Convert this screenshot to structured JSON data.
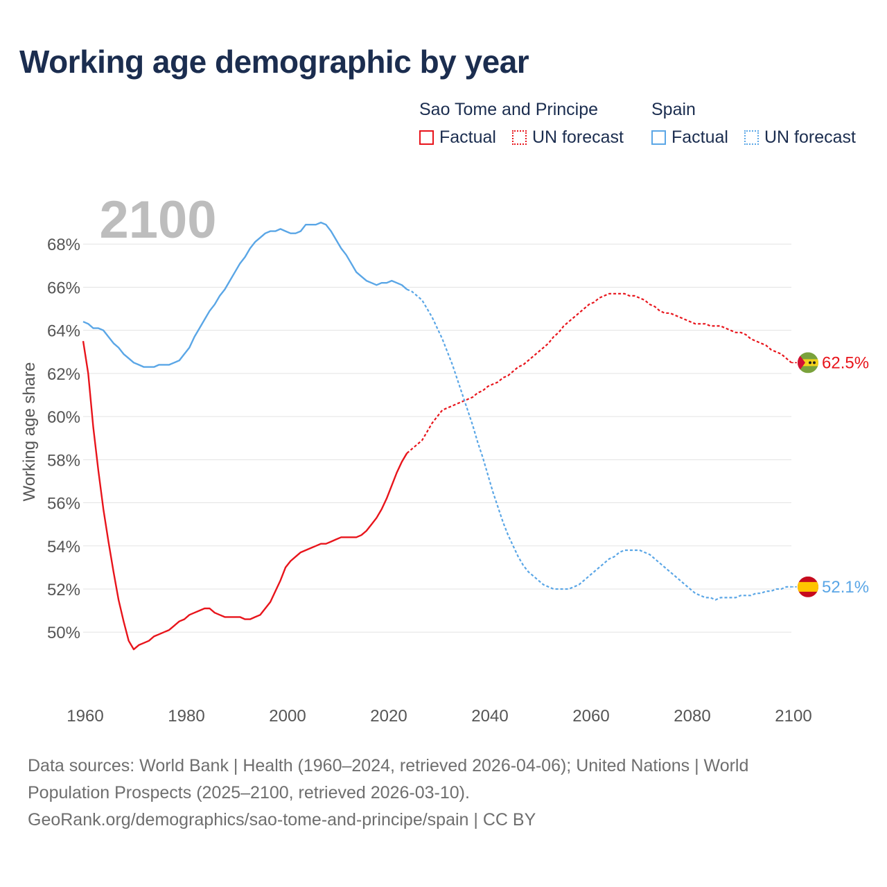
{
  "header": {
    "title": "Working age demographic by year"
  },
  "legend": {
    "groups": [
      {
        "name": "Sao Tome and Principe",
        "color": "#e8141b",
        "items": [
          {
            "label": "Factual",
            "style": "solid"
          },
          {
            "label": "UN forecast",
            "style": "dotted"
          }
        ]
      },
      {
        "name": "Spain",
        "color": "#5aa6e6",
        "items": [
          {
            "label": "Factual",
            "style": "solid"
          },
          {
            "label": "UN forecast",
            "style": "dotted"
          }
        ]
      }
    ]
  },
  "chart_data": {
    "type": "line",
    "title": "Working age demographic by year",
    "ylabel": "Working age share",
    "xlabel": "",
    "year_watermark": "2100",
    "xlim": [
      1960,
      2100
    ],
    "ylim": [
      47.5,
      70.0
    ],
    "x_ticks": [
      "1960",
      "1980",
      "2000",
      "2020",
      "2040",
      "2060",
      "2080",
      "2100"
    ],
    "y_ticks": [
      "50%",
      "52%",
      "54%",
      "56%",
      "58%",
      "60%",
      "62%",
      "64%",
      "66%",
      "68%"
    ],
    "grid": true,
    "factual_end_year": 2024,
    "series": [
      {
        "name": "Sao Tome and Principe",
        "color": "#e8141b",
        "end_label": "62.5%",
        "points": [
          [
            1960,
            63.5
          ],
          [
            1961,
            62.0
          ],
          [
            1962,
            59.5
          ],
          [
            1963,
            57.5
          ],
          [
            1964,
            55.7
          ],
          [
            1965,
            54.2
          ],
          [
            1966,
            52.8
          ],
          [
            1967,
            51.5
          ],
          [
            1968,
            50.5
          ],
          [
            1969,
            49.6
          ],
          [
            1970,
            49.2
          ],
          [
            1971,
            49.4
          ],
          [
            1972,
            49.5
          ],
          [
            1973,
            49.6
          ],
          [
            1974,
            49.8
          ],
          [
            1975,
            49.9
          ],
          [
            1976,
            50.0
          ],
          [
            1977,
            50.1
          ],
          [
            1978,
            50.3
          ],
          [
            1979,
            50.5
          ],
          [
            1980,
            50.6
          ],
          [
            1981,
            50.8
          ],
          [
            1982,
            50.9
          ],
          [
            1983,
            51.0
          ],
          [
            1984,
            51.1
          ],
          [
            1985,
            51.1
          ],
          [
            1986,
            50.9
          ],
          [
            1987,
            50.8
          ],
          [
            1988,
            50.7
          ],
          [
            1989,
            50.7
          ],
          [
            1990,
            50.7
          ],
          [
            1991,
            50.7
          ],
          [
            1992,
            50.6
          ],
          [
            1993,
            50.6
          ],
          [
            1994,
            50.7
          ],
          [
            1995,
            50.8
          ],
          [
            1996,
            51.1
          ],
          [
            1997,
            51.4
          ],
          [
            1998,
            51.9
          ],
          [
            1999,
            52.4
          ],
          [
            2000,
            53.0
          ],
          [
            2001,
            53.3
          ],
          [
            2002,
            53.5
          ],
          [
            2003,
            53.7
          ],
          [
            2004,
            53.8
          ],
          [
            2005,
            53.9
          ],
          [
            2006,
            54.0
          ],
          [
            2007,
            54.1
          ],
          [
            2008,
            54.1
          ],
          [
            2009,
            54.2
          ],
          [
            2010,
            54.3
          ],
          [
            2011,
            54.4
          ],
          [
            2012,
            54.4
          ],
          [
            2013,
            54.4
          ],
          [
            2014,
            54.4
          ],
          [
            2015,
            54.5
          ],
          [
            2016,
            54.7
          ],
          [
            2017,
            55.0
          ],
          [
            2018,
            55.3
          ],
          [
            2019,
            55.7
          ],
          [
            2020,
            56.2
          ],
          [
            2021,
            56.8
          ],
          [
            2022,
            57.4
          ],
          [
            2023,
            57.9
          ],
          [
            2024,
            58.3
          ],
          [
            2025,
            58.5
          ],
          [
            2026,
            58.7
          ],
          [
            2027,
            58.9
          ],
          [
            2028,
            59.3
          ],
          [
            2029,
            59.7
          ],
          [
            2030,
            60.0
          ],
          [
            2031,
            60.3
          ],
          [
            2032,
            60.4
          ],
          [
            2033,
            60.5
          ],
          [
            2034,
            60.6
          ],
          [
            2035,
            60.7
          ],
          [
            2036,
            60.8
          ],
          [
            2037,
            60.9
          ],
          [
            2038,
            61.1
          ],
          [
            2039,
            61.2
          ],
          [
            2040,
            61.4
          ],
          [
            2041,
            61.5
          ],
          [
            2042,
            61.6
          ],
          [
            2043,
            61.8
          ],
          [
            2044,
            61.9
          ],
          [
            2045,
            62.1
          ],
          [
            2046,
            62.3
          ],
          [
            2047,
            62.4
          ],
          [
            2048,
            62.6
          ],
          [
            2049,
            62.8
          ],
          [
            2050,
            63.0
          ],
          [
            2051,
            63.2
          ],
          [
            2052,
            63.4
          ],
          [
            2053,
            63.7
          ],
          [
            2054,
            63.9
          ],
          [
            2055,
            64.2
          ],
          [
            2056,
            64.4
          ],
          [
            2057,
            64.6
          ],
          [
            2058,
            64.8
          ],
          [
            2059,
            65.0
          ],
          [
            2060,
            65.2
          ],
          [
            2061,
            65.3
          ],
          [
            2062,
            65.5
          ],
          [
            2063,
            65.6
          ],
          [
            2064,
            65.7
          ],
          [
            2065,
            65.7
          ],
          [
            2066,
            65.7
          ],
          [
            2067,
            65.7
          ],
          [
            2068,
            65.6
          ],
          [
            2069,
            65.6
          ],
          [
            2070,
            65.5
          ],
          [
            2071,
            65.4
          ],
          [
            2072,
            65.2
          ],
          [
            2073,
            65.1
          ],
          [
            2074,
            64.9
          ],
          [
            2075,
            64.8
          ],
          [
            2076,
            64.8
          ],
          [
            2077,
            64.7
          ],
          [
            2078,
            64.6
          ],
          [
            2079,
            64.5
          ],
          [
            2080,
            64.4
          ],
          [
            2081,
            64.3
          ],
          [
            2082,
            64.3
          ],
          [
            2083,
            64.3
          ],
          [
            2084,
            64.2
          ],
          [
            2085,
            64.2
          ],
          [
            2086,
            64.2
          ],
          [
            2087,
            64.1
          ],
          [
            2088,
            64.0
          ],
          [
            2089,
            63.9
          ],
          [
            2090,
            63.9
          ],
          [
            2091,
            63.8
          ],
          [
            2092,
            63.6
          ],
          [
            2093,
            63.5
          ],
          [
            2094,
            63.4
          ],
          [
            2095,
            63.3
          ],
          [
            2096,
            63.1
          ],
          [
            2097,
            63.0
          ],
          [
            2098,
            62.9
          ],
          [
            2099,
            62.7
          ],
          [
            2100,
            62.5
          ]
        ]
      },
      {
        "name": "Spain",
        "color": "#5aa6e6",
        "end_label": "52.1%",
        "points": [
          [
            1960,
            64.4
          ],
          [
            1961,
            64.3
          ],
          [
            1962,
            64.1
          ],
          [
            1963,
            64.1
          ],
          [
            1964,
            64.0
          ],
          [
            1965,
            63.7
          ],
          [
            1966,
            63.4
          ],
          [
            1967,
            63.2
          ],
          [
            1968,
            62.9
          ],
          [
            1969,
            62.7
          ],
          [
            1970,
            62.5
          ],
          [
            1971,
            62.4
          ],
          [
            1972,
            62.3
          ],
          [
            1973,
            62.3
          ],
          [
            1974,
            62.3
          ],
          [
            1975,
            62.4
          ],
          [
            1976,
            62.4
          ],
          [
            1977,
            62.4
          ],
          [
            1978,
            62.5
          ],
          [
            1979,
            62.6
          ],
          [
            1980,
            62.9
          ],
          [
            1981,
            63.2
          ],
          [
            1982,
            63.7
          ],
          [
            1983,
            64.1
          ],
          [
            1984,
            64.5
          ],
          [
            1985,
            64.9
          ],
          [
            1986,
            65.2
          ],
          [
            1987,
            65.6
          ],
          [
            1988,
            65.9
          ],
          [
            1989,
            66.3
          ],
          [
            1990,
            66.7
          ],
          [
            1991,
            67.1
          ],
          [
            1992,
            67.4
          ],
          [
            1993,
            67.8
          ],
          [
            1994,
            68.1
          ],
          [
            1995,
            68.3
          ],
          [
            1996,
            68.5
          ],
          [
            1997,
            68.6
          ],
          [
            1998,
            68.6
          ],
          [
            1999,
            68.7
          ],
          [
            2000,
            68.6
          ],
          [
            2001,
            68.5
          ],
          [
            2002,
            68.5
          ],
          [
            2003,
            68.6
          ],
          [
            2004,
            68.9
          ],
          [
            2005,
            68.9
          ],
          [
            2006,
            68.9
          ],
          [
            2007,
            69.0
          ],
          [
            2008,
            68.9
          ],
          [
            2009,
            68.6
          ],
          [
            2010,
            68.2
          ],
          [
            2011,
            67.8
          ],
          [
            2012,
            67.5
          ],
          [
            2013,
            67.1
          ],
          [
            2014,
            66.7
          ],
          [
            2015,
            66.5
          ],
          [
            2016,
            66.3
          ],
          [
            2017,
            66.2
          ],
          [
            2018,
            66.1
          ],
          [
            2019,
            66.2
          ],
          [
            2020,
            66.2
          ],
          [
            2021,
            66.3
          ],
          [
            2022,
            66.2
          ],
          [
            2023,
            66.1
          ],
          [
            2024,
            65.9
          ],
          [
            2025,
            65.8
          ],
          [
            2026,
            65.6
          ],
          [
            2027,
            65.4
          ],
          [
            2028,
            65.0
          ],
          [
            2029,
            64.6
          ],
          [
            2030,
            64.1
          ],
          [
            2031,
            63.6
          ],
          [
            2032,
            63.0
          ],
          [
            2033,
            62.4
          ],
          [
            2034,
            61.7
          ],
          [
            2035,
            61.0
          ],
          [
            2036,
            60.3
          ],
          [
            2037,
            59.6
          ],
          [
            2038,
            58.8
          ],
          [
            2039,
            58.1
          ],
          [
            2040,
            57.3
          ],
          [
            2041,
            56.5
          ],
          [
            2042,
            55.8
          ],
          [
            2043,
            55.1
          ],
          [
            2044,
            54.5
          ],
          [
            2045,
            54.0
          ],
          [
            2046,
            53.5
          ],
          [
            2047,
            53.1
          ],
          [
            2048,
            52.8
          ],
          [
            2049,
            52.6
          ],
          [
            2050,
            52.4
          ],
          [
            2051,
            52.2
          ],
          [
            2052,
            52.1
          ],
          [
            2053,
            52.0
          ],
          [
            2054,
            52.0
          ],
          [
            2055,
            52.0
          ],
          [
            2056,
            52.0
          ],
          [
            2057,
            52.1
          ],
          [
            2058,
            52.2
          ],
          [
            2059,
            52.4
          ],
          [
            2060,
            52.6
          ],
          [
            2061,
            52.8
          ],
          [
            2062,
            53.0
          ],
          [
            2063,
            53.2
          ],
          [
            2064,
            53.4
          ],
          [
            2065,
            53.5
          ],
          [
            2066,
            53.7
          ],
          [
            2067,
            53.8
          ],
          [
            2068,
            53.8
          ],
          [
            2069,
            53.8
          ],
          [
            2070,
            53.8
          ],
          [
            2071,
            53.7
          ],
          [
            2072,
            53.6
          ],
          [
            2073,
            53.4
          ],
          [
            2074,
            53.2
          ],
          [
            2075,
            53.0
          ],
          [
            2076,
            52.8
          ],
          [
            2077,
            52.6
          ],
          [
            2078,
            52.4
          ],
          [
            2079,
            52.2
          ],
          [
            2080,
            52.0
          ],
          [
            2081,
            51.8
          ],
          [
            2082,
            51.7
          ],
          [
            2083,
            51.6
          ],
          [
            2084,
            51.6
          ],
          [
            2085,
            51.5
          ],
          [
            2086,
            51.6
          ],
          [
            2087,
            51.6
          ],
          [
            2088,
            51.6
          ],
          [
            2089,
            51.6
          ],
          [
            2090,
            51.7
          ],
          [
            2091,
            51.7
          ],
          [
            2092,
            51.7
          ],
          [
            2093,
            51.8
          ],
          [
            2094,
            51.8
          ],
          [
            2095,
            51.9
          ],
          [
            2096,
            51.9
          ],
          [
            2097,
            52.0
          ],
          [
            2098,
            52.0
          ],
          [
            2099,
            52.1
          ],
          [
            2100,
            52.1
          ]
        ]
      }
    ]
  },
  "flags": {
    "sao_tome": {
      "green": "#7aa23c",
      "yellow": "#f4d21c",
      "red": "#d21034",
      "star": "#222222"
    },
    "spain": {
      "red": "#c60b1e",
      "yellow": "#ffc400"
    }
  },
  "footer": {
    "line1": "Data sources: World Bank | Health (1960–2024, retrieved 2026-04-06); United Nations | World",
    "line2": "Population Prospects (2025–2100, retrieved 2026-03-10).",
    "line3": "GeoRank.org/demographics/sao-tome-and-principe/spain | CC BY"
  }
}
